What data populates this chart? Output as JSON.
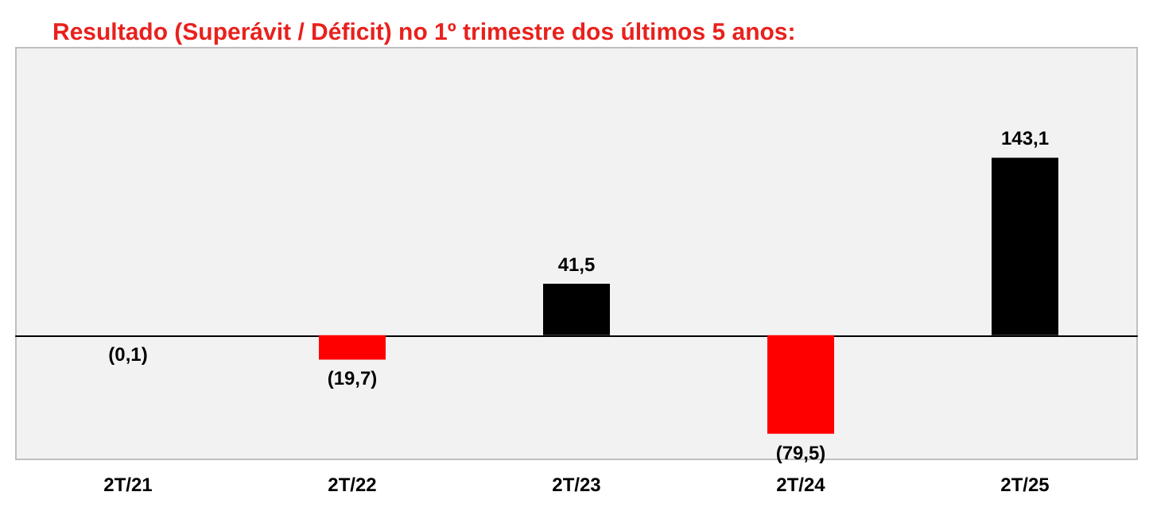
{
  "chart_data": {
    "type": "bar",
    "title": "Resultado (Superávit / Déficit) no 1º trimestre dos últimos 5 anos:",
    "categories": [
      "2T/21",
      "2T/22",
      "2T/23",
      "2T/24",
      "2T/25"
    ],
    "values": [
      -0.1,
      -19.7,
      41.5,
      -79.5,
      143.1
    ],
    "colors": [
      "#ff0000",
      "#ff0000",
      "#000000",
      "#ff0000",
      "#000000"
    ],
    "value_labels": [
      "(0,1)",
      "(19,7)",
      "41,5",
      "(79,5)",
      "143,1"
    ]
  }
}
